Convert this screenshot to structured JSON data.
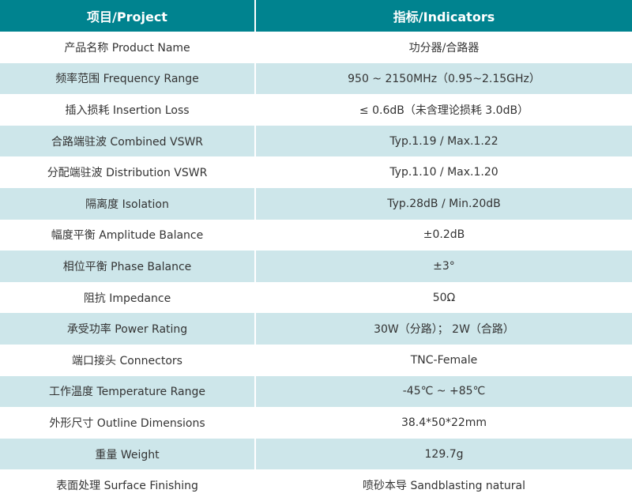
{
  "header": {
    "project": "项目/Project",
    "indicators": "指标/Indicators"
  },
  "colors": {
    "header_bg": "#00838f",
    "alt_row_bg": "#cde6ea"
  },
  "rows": [
    {
      "project": "产品名称 Product Name",
      "value": "功分器/合路器"
    },
    {
      "project": "频率范围 Frequency Range",
      "value": "950 ~ 2150MHz（0.95~2.15GHz）"
    },
    {
      "project": "插入损耗 Insertion Loss",
      "value": "≤ 0.6dB（未含理论损耗 3.0dB）"
    },
    {
      "project": "合路端驻波 Combined VSWR",
      "value": "Typ.1.19 / Max.1.22"
    },
    {
      "project": "分配端驻波 Distribution VSWR",
      "value": "Typ.1.10 / Max.1.20"
    },
    {
      "project": "隔离度 Isolation",
      "value": "Typ.28dB / Min.20dB"
    },
    {
      "project": "幅度平衡 Amplitude Balance",
      "value": "±0.2dB"
    },
    {
      "project": "相位平衡 Phase Balance",
      "value": "±3°"
    },
    {
      "project": "阻抗 Impedance",
      "value": "50Ω"
    },
    {
      "project": "承受功率 Power Rating",
      "value": "30W（分路）； 2W（合路）"
    },
    {
      "project": "端口接头 Connectors",
      "value": "TNC-Female"
    },
    {
      "project": "工作温度 Temperature Range",
      "value": "-45℃ ~ +85℃"
    },
    {
      "project": "外形尺寸 Outline Dimensions",
      "value": "38.4*50*22mm"
    },
    {
      "project": "重量 Weight",
      "value": "129.7g"
    },
    {
      "project": "表面处理 Surface Finishing",
      "value": "喷砂本导 Sandblasting natural"
    }
  ]
}
